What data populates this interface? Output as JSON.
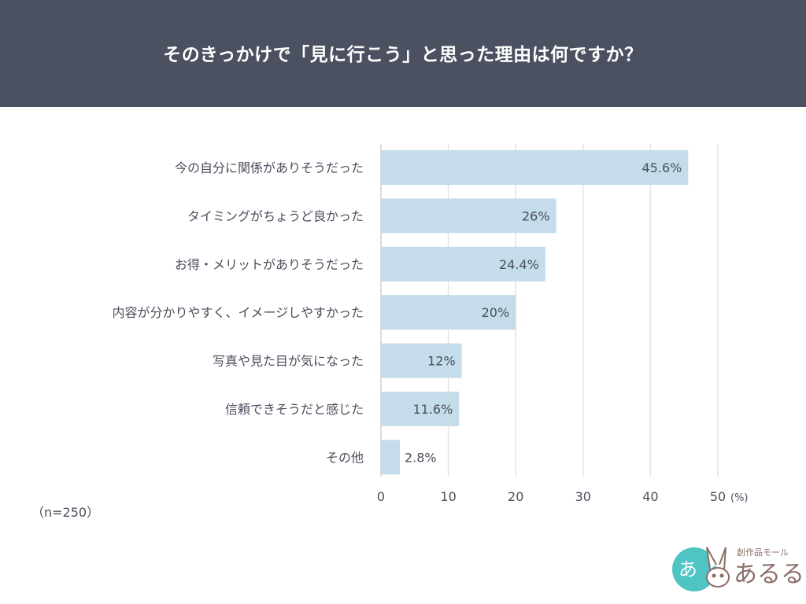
{
  "header": {
    "title": "そのきっかけで「見に行こう」と思った理由は何ですか？"
  },
  "note": "（n=250）",
  "logo": {
    "tagline": "創作品モール",
    "name": "あるる",
    "badge": "あ"
  },
  "colors": {
    "header_bg": "#4b5161",
    "bar": "#c5dcea",
    "text": "#4a4f5c",
    "grid": "#e3e3e3",
    "logo_teal": "#4fc4c4",
    "logo_brown": "#8b6c66"
  },
  "chart_data": {
    "type": "bar",
    "orientation": "horizontal",
    "title": "そのきっかけで「見に行こう」と思った理由は何ですか？",
    "categories": [
      "今の自分に関係がありそうだった",
      "タイミングがちょうど良かった",
      "お得・メリットがありそうだった",
      "内容が分かりやすく、イメージしやすかった",
      "写真や見た目が気になった",
      "信頼できそうだと感じた",
      "その他"
    ],
    "values": [
      45.6,
      26,
      24.4,
      20,
      12,
      11.6,
      2.8
    ],
    "data_labels": [
      "45.6%",
      "26%",
      "24.4%",
      "20%",
      "12%",
      "11.6%",
      "2.8%"
    ],
    "xlim": [
      0,
      50
    ],
    "ticks": [
      "0",
      "10",
      "20",
      "30",
      "40",
      "50"
    ],
    "unit_label": "(%)",
    "grid": true
  }
}
